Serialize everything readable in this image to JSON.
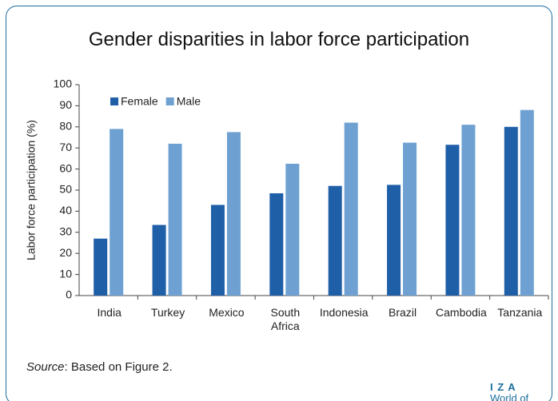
{
  "title": "Gender disparities in labor force participation",
  "chart_data": {
    "type": "bar",
    "y_label": "Labor force participation (%)",
    "categories": [
      "India",
      "Turkey",
      "Mexico",
      "South Africa",
      "Indonesia",
      "Brazil",
      "Cambodia",
      "Tanzania"
    ],
    "series": [
      {
        "name": "Female",
        "color": "#1f5fa8",
        "values": [
          27,
          33.5,
          43,
          48.5,
          52,
          52.5,
          71.5,
          80
        ]
      },
      {
        "name": "Male",
        "color": "#6ea1d2",
        "values": [
          79,
          72,
          77.5,
          62.5,
          82,
          72.5,
          81,
          88
        ]
      }
    ],
    "ylim": [
      0,
      100
    ],
    "yticks": [
      0,
      10,
      20,
      30,
      40,
      50,
      60,
      70,
      80,
      90,
      100
    ],
    "legend": "top-left"
  },
  "source": {
    "label": "Source",
    "text": ": Based on Figure 2."
  },
  "logo": {
    "mark": "I Z A",
    "text": "World of Labor"
  }
}
